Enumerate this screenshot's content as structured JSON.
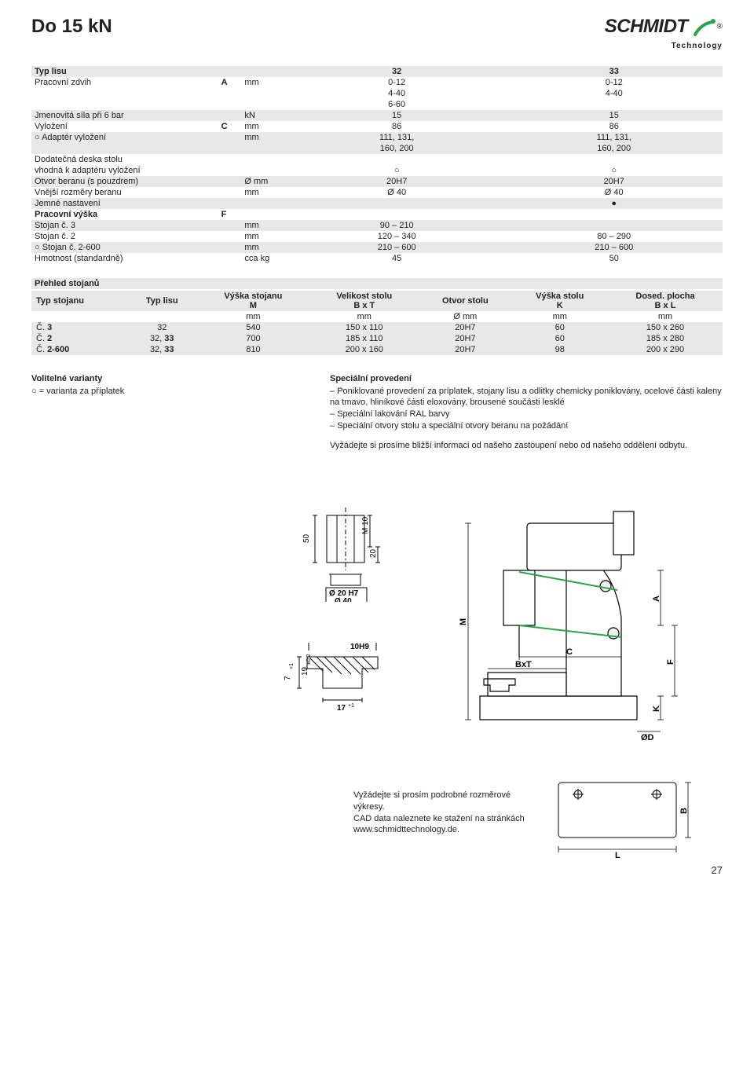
{
  "page": {
    "title": "Do 15 kN",
    "page_number": "27",
    "logo_text": "SCHMIDT",
    "logo_sub": "Technology",
    "logo_reg": "®",
    "logo_swoosh_color": "#2aa346"
  },
  "spec": {
    "header": {
      "label": "Typ lisu",
      "c1": "32",
      "c2": "33"
    },
    "rows": [
      {
        "label": "Pracovní zdvih",
        "sym": "A",
        "unit": "mm",
        "c1": "0-12",
        "c2": "0-12",
        "shade": false
      },
      {
        "label": "",
        "sym": "",
        "unit": "",
        "c1": "4-40",
        "c2": "4-40",
        "shade": false
      },
      {
        "label": "",
        "sym": "",
        "unit": "",
        "c1": "6-60",
        "c2": "",
        "shade": false
      },
      {
        "label": "Jmenovitá síla při 6 bar",
        "sym": "",
        "unit": "kN",
        "c1": "15",
        "c2": "15",
        "shade": true
      },
      {
        "label": "Vyložení",
        "sym": "C",
        "unit": "mm",
        "c1": "86",
        "c2": "86",
        "shade": false
      },
      {
        "label": "○ Adaptér vyložení",
        "sym": "",
        "unit": "mm",
        "c1": "111, 131,",
        "c2": "111, 131,",
        "shade": true
      },
      {
        "label": "",
        "sym": "",
        "unit": "",
        "c1": "160, 200",
        "c2": "160, 200",
        "shade": true
      },
      {
        "label": "Dodatečná deska stolu",
        "sym": "",
        "unit": "",
        "c1": "",
        "c2": "",
        "shade": false
      },
      {
        "label": "vhodná k adaptéru vyložení",
        "sym": "",
        "unit": "",
        "c1": "○",
        "c2": "○",
        "shade": false
      },
      {
        "label": "Otvor beranu (s pouzdrem)",
        "sym": "",
        "unit": "Ø mm",
        "c1": "20H7",
        "c2": "20H7",
        "shade": true
      },
      {
        "label": "Vnější rozměry beranu",
        "sym": "",
        "unit": "mm",
        "c1": "Ø 40",
        "c2": "Ø 40",
        "shade": false
      },
      {
        "label": "Jemné nastavení",
        "sym": "",
        "unit": "",
        "c1": "",
        "c2": "●",
        "shade": true
      },
      {
        "label": "Pracovní výška",
        "sym": "F",
        "unit": "",
        "c1": "",
        "c2": "",
        "shade": false,
        "bold": true
      },
      {
        "label": "Stojan č. 3",
        "sym": "",
        "unit": "mm",
        "c1": "90 – 210",
        "c2": "",
        "shade": true
      },
      {
        "label": "Stojan č. 2",
        "sym": "",
        "unit": "mm",
        "c1": "120 – 340",
        "c2": "80 – 290",
        "shade": false
      },
      {
        "label": "○ Stojan č. 2-600",
        "sym": "",
        "unit": "mm",
        "c1": "210 – 600",
        "c2": "210 – 600",
        "shade": true
      },
      {
        "label": "Hmotnost (standardně)",
        "sym": "",
        "unit": "cca kg",
        "c1": "45",
        "c2": "50",
        "shade": false
      }
    ]
  },
  "stands": {
    "section_title": "Přehled stojanů",
    "headers": [
      "Typ stojanu",
      "Typ lisu",
      "Výška stojanu",
      "Velikost stolu",
      "Otvor stolu",
      "Výška stolu",
      "Dosed. plocha"
    ],
    "subheaders": [
      "",
      "",
      "M",
      "B x T",
      "",
      "K",
      "B x L"
    ],
    "units": [
      "",
      "",
      "mm",
      "mm",
      "Ø mm",
      "mm",
      "mm"
    ],
    "rows": [
      [
        "Č. 3",
        "32",
        "540",
        "150 x 110",
        "20H7",
        "60",
        "150 x 260"
      ],
      [
        "Č. 2",
        "32, 33",
        "700",
        "185 x 110",
        "20H7",
        "60",
        "185 x 280"
      ],
      [
        "Č. 2-600",
        "32, 33",
        "810",
        "200 x 160",
        "20H7",
        "98",
        "200 x 290"
      ]
    ]
  },
  "options": {
    "left_title": "Volitelné varianty",
    "left_text": "○ = varianta za příplatek",
    "right_title": "Speciální provedení",
    "right_items": [
      "Poniklované provedení za príplatek, stojany lisu a odlitky chemicky poniklovány, ocelové části kaleny na tmavo, hliníkové části eloxovány, brousené součásti lesklé",
      "Speciální lakování RAL barvy",
      "Speciální otvory stolu a speciální otvory beranu na požádání"
    ],
    "right_footer": "Vyžádejte si prosíme bližší informaci od našeho zastoupení nebo od našeho oddělení odbytu."
  },
  "footer_note": "Vyžádejte si prosím podrobné rozměrové výkresy.\nCAD data naleznete ke stažení na stránkách www.schmidttechnology.de.",
  "diag_labels": {
    "d50": "50",
    "m10": "M 10",
    "d20": "20",
    "o20h7": "Ø 20 H7",
    "o40": "Ø 40",
    "d7": "7",
    "p1a": "+1",
    "d19": "19",
    "pm02": "±0,2",
    "d10h9": "10H9",
    "d17": "17",
    "p1b": "+1",
    "M": "M",
    "C": "C",
    "A": "A",
    "F": "F",
    "K": "K",
    "BxT": "BxT",
    "oD": "ØD",
    "B": "B",
    "L": "L"
  }
}
